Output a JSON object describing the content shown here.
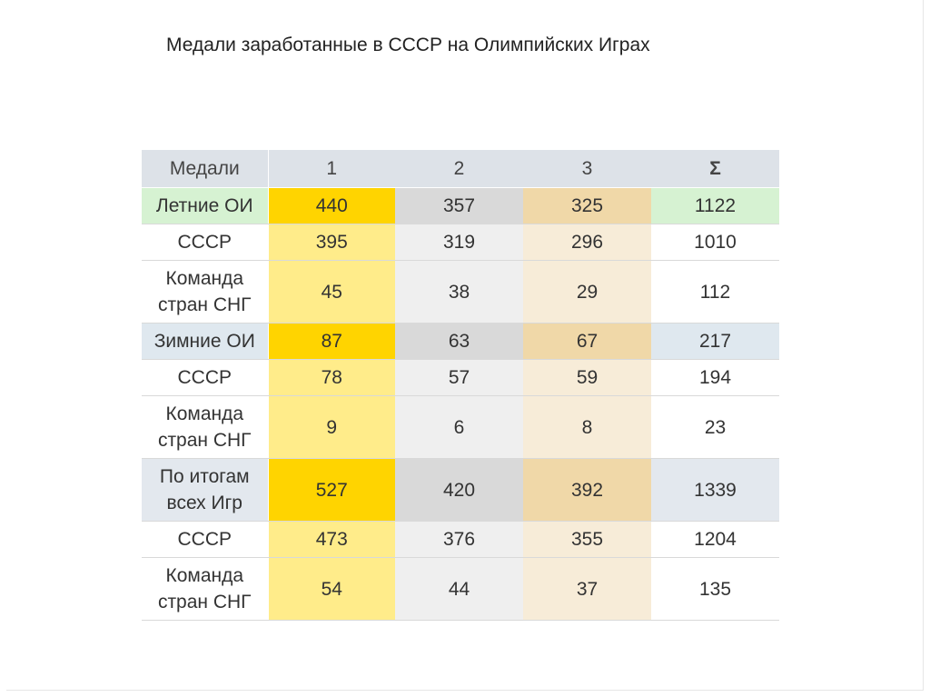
{
  "title": "Медали заработанные в  СССР на Олимпийских Играх",
  "table": {
    "header": [
      "Медали",
      "1",
      "2",
      "3",
      "Σ"
    ],
    "rows": [
      {
        "kind": "sum-summer",
        "label": "Летние ОИ",
        "gold": "440",
        "silver": "357",
        "bronze": "325",
        "total": "1122"
      },
      {
        "kind": "sub",
        "label": "СССР",
        "gold": "395",
        "silver": "319",
        "bronze": "296",
        "total": "1010"
      },
      {
        "kind": "sub",
        "label": "Команда стран СНГ",
        "gold": "45",
        "silver": "38",
        "bronze": "29",
        "total": "112"
      },
      {
        "kind": "sum-winter",
        "label": "Зимние ОИ",
        "gold": "87",
        "silver": "63",
        "bronze": "67",
        "total": "217"
      },
      {
        "kind": "sub",
        "label": "СССР",
        "gold": "78",
        "silver": "57",
        "bronze": "59",
        "total": "194"
      },
      {
        "kind": "sub",
        "label": "Команда стран СНГ",
        "gold": "9",
        "silver": "6",
        "bronze": "8",
        "total": "23"
      },
      {
        "kind": "sum-all",
        "label": "По итогам всех Игр",
        "gold": "527",
        "silver": "420",
        "bronze": "392",
        "total": "1339"
      },
      {
        "kind": "sub",
        "label": "СССР",
        "gold": "473",
        "silver": "376",
        "bronze": "355",
        "total": "1204"
      },
      {
        "kind": "sub",
        "label": "Команда стран СНГ",
        "gold": "54",
        "silver": "44",
        "bronze": "37",
        "total": "135"
      }
    ]
  }
}
